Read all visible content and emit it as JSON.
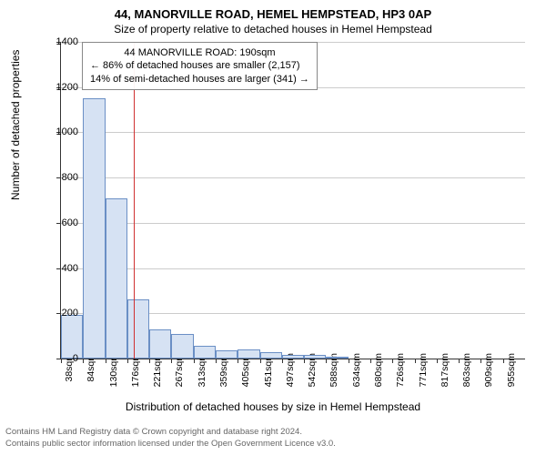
{
  "title": "44, MANORVILLE ROAD, HEMEL HEMPSTEAD, HP3 0AP",
  "subtitle": "Size of property relative to detached houses in Hemel Hempstead",
  "info_box": {
    "line1": "44 MANORVILLE ROAD: 190sqm",
    "line2": "← 86% of detached houses are smaller (2,157)",
    "line3": "14% of semi-detached houses are larger (341) →"
  },
  "ylabel": "Number of detached properties",
  "xlabel": "Distribution of detached houses by size in Hemel Hempstead",
  "footer": {
    "line1": "Contains HM Land Registry data © Crown copyright and database right 2024.",
    "line2": "Contains public sector information licensed under the Open Government Licence v3.0."
  },
  "chart": {
    "type": "histogram",
    "ylim": [
      0,
      1400
    ],
    "ytick_step": 200,
    "xticks": [
      "38sqm",
      "84sqm",
      "130sqm",
      "176sqm",
      "221sqm",
      "267sqm",
      "313sqm",
      "359sqm",
      "405sqm",
      "451sqm",
      "497sqm",
      "542sqm",
      "588sqm",
      "634sqm",
      "680sqm",
      "726sqm",
      "771sqm",
      "817sqm",
      "863sqm",
      "909sqm",
      "955sqm"
    ],
    "bars": [
      195,
      1150,
      710,
      260,
      130,
      110,
      55,
      35,
      40,
      28,
      18,
      15,
      10
    ],
    "bar_color": "#d6e2f3",
    "bar_border": "#6a8fc5",
    "marker_x_sqm": 190,
    "marker_color": "#d03030",
    "background": "#ffffff",
    "grid_color": "#cccccc",
    "axis_color": "#333333",
    "title_fontsize": 13,
    "label_fontsize": 12,
    "tick_fontsize": 11
  }
}
